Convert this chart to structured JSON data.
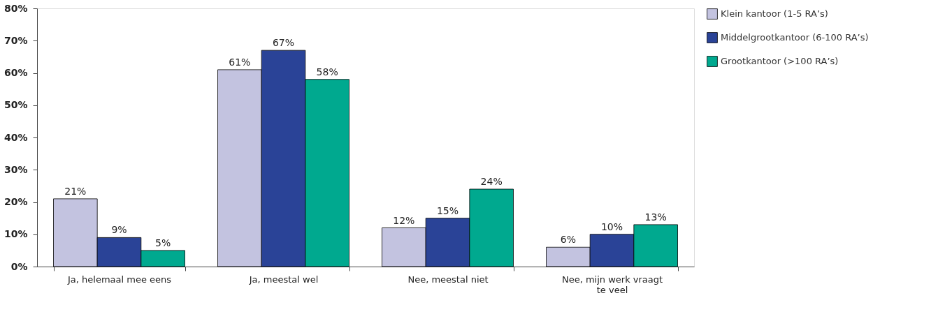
{
  "chart_data": {
    "type": "bar",
    "categories": [
      "Ja, helemaal mee eens",
      "Ja, meestal wel",
      "Nee, meestal niet",
      "Nee, mijn werk vraagt te veel"
    ],
    "series": [
      {
        "name": "Klein kantoor (1-5 RA’s)",
        "color": "#c3c3e0",
        "values": [
          21,
          61,
          12,
          6
        ],
        "value_labels": [
          "21%",
          "61%",
          "12%",
          "6%"
        ]
      },
      {
        "name": "Middelgrootkantoor (6-100 RA’s)",
        "color": "#2a4397",
        "values": [
          9,
          67,
          15,
          10
        ],
        "value_labels": [
          "9%",
          "67%",
          "15%",
          "10%"
        ]
      },
      {
        "name": "Grootkantoor (>100 RA’s)",
        "color": "#00a98f",
        "values": [
          5,
          58,
          24,
          13
        ],
        "value_labels": [
          "5%",
          "58%",
          "24%",
          "13%"
        ]
      }
    ],
    "ylim": [
      0,
      80
    ],
    "yticks": [
      {
        "value": 0,
        "label": "0%"
      },
      {
        "value": 10,
        "label": "10%"
      },
      {
        "value": 20,
        "label": "20%"
      },
      {
        "value": 30,
        "label": "30%"
      },
      {
        "value": 40,
        "label": "40%"
      },
      {
        "value": 50,
        "label": "50%"
      },
      {
        "value": 60,
        "label": "60%"
      },
      {
        "value": 70,
        "label": "70%"
      },
      {
        "value": 80,
        "label": "80%"
      }
    ],
    "grid": false,
    "legend": "top right"
  }
}
